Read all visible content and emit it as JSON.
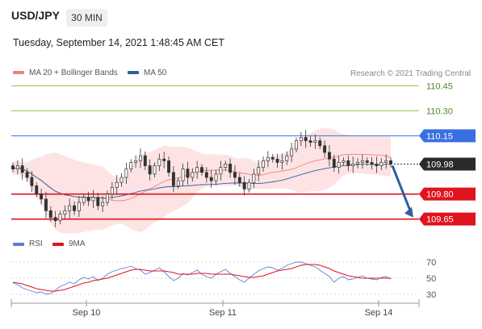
{
  "header": {
    "symbol": "USD/JPY",
    "timeframe": "30 MIN",
    "timestamp": "Tuesday, September 14, 2021 1:48:45 AM CET"
  },
  "legend": {
    "ma20_label": "MA 20 + Bollinger Bands",
    "ma50_label": "MA 50",
    "credit": "Research © 2021 Trading Central",
    "rsi_label": "RSI",
    "nine_ma_label": "9MA"
  },
  "colors": {
    "ma20": "#f08080",
    "ma50": "#2f5f9e",
    "bb_fill": "#fcd9d9",
    "green_level": "#8bc34a",
    "blue_level": "#3a6fe0",
    "red_level": "#e0141e",
    "arrow": "#2f5f9e",
    "rsi": "#5a7fd6",
    "nine_ma": "#e0141e",
    "candle": "#333333"
  },
  "chart_data": [
    {
      "type": "candlestick",
      "x_ticks": [
        "Sep 10",
        "Sep 11",
        "Sep 14"
      ],
      "levels": [
        {
          "value": "110.45",
          "kind": "resistance",
          "style": "green-line"
        },
        {
          "value": "110.30",
          "kind": "resistance",
          "style": "green-line"
        },
        {
          "value": "110.15",
          "kind": "pivot",
          "style": "blue-line-tag"
        },
        {
          "value": "109.98",
          "kind": "last-price",
          "style": "dark-tag"
        },
        {
          "value": "109.80",
          "kind": "support",
          "style": "red-line-tag"
        },
        {
          "value": "109.65",
          "kind": "support",
          "style": "red-line-tag"
        }
      ],
      "ylim": [
        109.6,
        110.5
      ],
      "arrow": {
        "from": 109.98,
        "to": 109.65,
        "direction": "down"
      },
      "close": [
        109.95,
        109.97,
        109.93,
        109.9,
        109.85,
        109.8,
        109.77,
        109.7,
        109.66,
        109.64,
        109.68,
        109.7,
        109.73,
        109.7,
        109.75,
        109.78,
        109.76,
        109.78,
        109.73,
        109.75,
        109.8,
        109.84,
        109.87,
        109.9,
        109.95,
        109.99,
        110.0,
        110.03,
        109.97,
        109.92,
        109.97,
        110.01,
        110.0,
        109.93,
        109.85,
        109.88,
        109.95,
        109.9,
        109.93,
        109.96,
        109.93,
        109.9,
        109.88,
        109.92,
        109.96,
        109.98,
        109.93,
        109.9,
        109.87,
        109.83,
        109.87,
        109.92,
        109.96,
        110.0,
        110.02,
        110.01,
        109.99,
        110.0,
        110.03,
        110.07,
        110.12,
        110.14,
        110.12,
        110.11,
        110.12,
        110.09,
        110.05,
        110.01,
        109.96,
        109.99,
        110.0,
        109.97,
        109.98,
        109.99,
        110.0,
        109.99,
        109.98,
        109.97,
        109.99,
        110.0,
        109.98
      ]
    },
    {
      "type": "line",
      "series": [
        {
          "name": "RSI",
          "values": [
            44,
            42,
            38,
            36,
            34,
            32,
            33,
            30,
            31,
            35,
            40,
            42,
            45,
            43,
            48,
            51,
            49,
            52,
            47,
            50,
            55,
            58,
            60,
            62,
            63,
            65,
            62,
            60,
            55,
            57,
            60,
            63,
            58,
            52,
            47,
            50,
            56,
            54,
            57,
            60,
            55,
            52,
            50,
            55,
            58,
            61,
            56,
            52,
            48,
            45,
            50,
            55,
            59,
            62,
            64,
            63,
            60,
            62,
            66,
            68,
            70,
            70,
            68,
            66,
            64,
            60,
            56,
            52,
            45,
            50,
            52,
            48,
            49,
            51,
            53,
            50,
            49,
            48,
            51,
            52,
            49
          ]
        },
        {
          "name": "9MA",
          "values": [
            45,
            44,
            43,
            41,
            39,
            37,
            36,
            35,
            34,
            34,
            35,
            36,
            38,
            40,
            42,
            44,
            45,
            47,
            48,
            49,
            50,
            52,
            54,
            56,
            58,
            60,
            61,
            61,
            60,
            59,
            59,
            59,
            59,
            58,
            57,
            55,
            55,
            55,
            55,
            56,
            56,
            56,
            55,
            55,
            55,
            55,
            55,
            54,
            53,
            52,
            51,
            51,
            52,
            53,
            55,
            57,
            59,
            60,
            61,
            62,
            64,
            66,
            67,
            67,
            67,
            66,
            64,
            62,
            59,
            57,
            55,
            53,
            52,
            51,
            50,
            50,
            50,
            50,
            50,
            50,
            50
          ]
        }
      ],
      "y_ticks": [
        "70",
        "50",
        "30"
      ],
      "ylim": [
        25,
        75
      ]
    }
  ]
}
